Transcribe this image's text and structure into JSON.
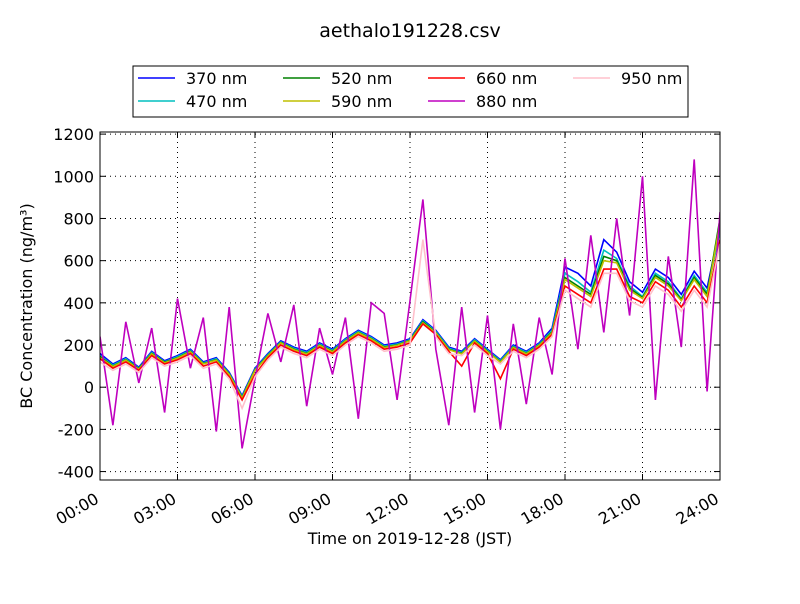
{
  "chart_data": {
    "type": "line",
    "title": "aethalo191228.csv",
    "x_label": "Time on 2019-12-28 (JST)",
    "y_label": "BC Concentration (ng/m³)",
    "x": [
      0,
      0.5,
      1,
      1.5,
      2,
      2.5,
      3,
      3.5,
      4,
      4.5,
      5,
      5.5,
      6,
      6.5,
      7,
      7.5,
      8,
      8.5,
      9,
      9.5,
      10,
      10.5,
      11,
      11.5,
      12,
      12.5,
      13,
      13.5,
      14,
      14.5,
      15,
      15.5,
      16,
      16.5,
      17,
      17.5,
      18,
      18.5,
      19,
      19.5,
      20,
      20.5,
      21,
      21.5,
      22,
      22.5,
      23,
      23.5,
      24
    ],
    "series": [
      {
        "name": "370 nm",
        "color": "#0000ff",
        "values": [
          160,
          110,
          140,
          95,
          170,
          125,
          150,
          180,
          120,
          140,
          70,
          -40,
          90,
          160,
          220,
          190,
          170,
          210,
          180,
          230,
          270,
          240,
          200,
          210,
          230,
          320,
          270,
          190,
          170,
          230,
          180,
          130,
          200,
          170,
          210,
          280,
          570,
          540,
          480,
          700,
          640,
          500,
          450,
          560,
          520,
          440,
          550,
          470,
          760
        ]
      },
      {
        "name": "470 nm",
        "color": "#00bfbf",
        "values": [
          150,
          105,
          135,
          90,
          165,
          120,
          145,
          175,
          115,
          135,
          65,
          -45,
          85,
          155,
          215,
          185,
          165,
          205,
          175,
          225,
          265,
          235,
          195,
          205,
          225,
          315,
          265,
          185,
          165,
          225,
          175,
          125,
          195,
          165,
          205,
          270,
          540,
          500,
          450,
          650,
          610,
          480,
          430,
          540,
          500,
          420,
          530,
          450,
          740
        ]
      },
      {
        "name": "520 nm",
        "color": "#008000",
        "values": [
          145,
          100,
          130,
          88,
          160,
          118,
          140,
          170,
          112,
          130,
          62,
          -50,
          82,
          150,
          212,
          180,
          160,
          200,
          170,
          220,
          260,
          230,
          190,
          200,
          222,
          310,
          260,
          180,
          160,
          220,
          170,
          120,
          190,
          160,
          200,
          262,
          520,
          480,
          440,
          620,
          600,
          470,
          425,
          530,
          490,
          415,
          520,
          440,
          800
        ]
      },
      {
        "name": "590 nm",
        "color": "#bfbf00",
        "values": [
          140,
          98,
          128,
          85,
          158,
          115,
          138,
          168,
          110,
          128,
          60,
          -52,
          80,
          148,
          210,
          178,
          158,
          198,
          168,
          218,
          258,
          228,
          188,
          198,
          220,
          305,
          258,
          178,
          158,
          218,
          168,
          118,
          188,
          158,
          198,
          258,
          510,
          470,
          430,
          600,
          590,
          460,
          420,
          520,
          480,
          410,
          510,
          430,
          780
        ]
      },
      {
        "name": "660 nm",
        "color": "#ff0000",
        "values": [
          135,
          90,
          120,
          80,
          150,
          110,
          130,
          160,
          100,
          120,
          50,
          -60,
          60,
          140,
          200,
          170,
          150,
          190,
          160,
          210,
          250,
          220,
          180,
          190,
          210,
          300,
          250,
          170,
          100,
          210,
          160,
          40,
          180,
          150,
          190,
          250,
          480,
          440,
          400,
          560,
          560,
          430,
          400,
          500,
          460,
          380,
          480,
          400,
          700
        ]
      },
      {
        "name": "880 nm",
        "color": "#bf00bf",
        "values": [
          240,
          -180,
          310,
          20,
          280,
          -120,
          420,
          90,
          330,
          -210,
          380,
          -290,
          40,
          350,
          120,
          390,
          -90,
          280,
          60,
          330,
          -150,
          400,
          350,
          -60,
          410,
          890,
          180,
          -180,
          380,
          -120,
          340,
          -200,
          300,
          -80,
          330,
          60,
          610,
          180,
          720,
          260,
          800,
          340,
          1000,
          -60,
          620,
          190,
          1080,
          -20,
          830
        ]
      },
      {
        "name": "950 nm",
        "color": "#ffc0cb",
        "values": [
          120,
          80,
          110,
          70,
          140,
          100,
          120,
          150,
          90,
          110,
          40,
          -100,
          50,
          130,
          190,
          160,
          140,
          180,
          150,
          200,
          240,
          210,
          170,
          180,
          200,
          700,
          240,
          160,
          150,
          200,
          150,
          110,
          170,
          140,
          180,
          240,
          460,
          420,
          380,
          540,
          540,
          410,
          380,
          480,
          440,
          360,
          460,
          380,
          680
        ]
      }
    ],
    "xlim": [
      0,
      24
    ],
    "xticks": [
      {
        "value": 0,
        "label": "00:00"
      },
      {
        "value": 3,
        "label": "03:00"
      },
      {
        "value": 6,
        "label": "06:00"
      },
      {
        "value": 9,
        "label": "09:00"
      },
      {
        "value": 12,
        "label": "12:00"
      },
      {
        "value": 15,
        "label": "15:00"
      },
      {
        "value": 18,
        "label": "18:00"
      },
      {
        "value": 21,
        "label": "21:00"
      },
      {
        "value": 24,
        "label": "24:00"
      }
    ],
    "ylim": [
      -440,
      1210
    ],
    "yticks": [
      -400,
      -200,
      0,
      200,
      400,
      600,
      800,
      1000,
      1200
    ],
    "grid": true,
    "legend": "top"
  }
}
